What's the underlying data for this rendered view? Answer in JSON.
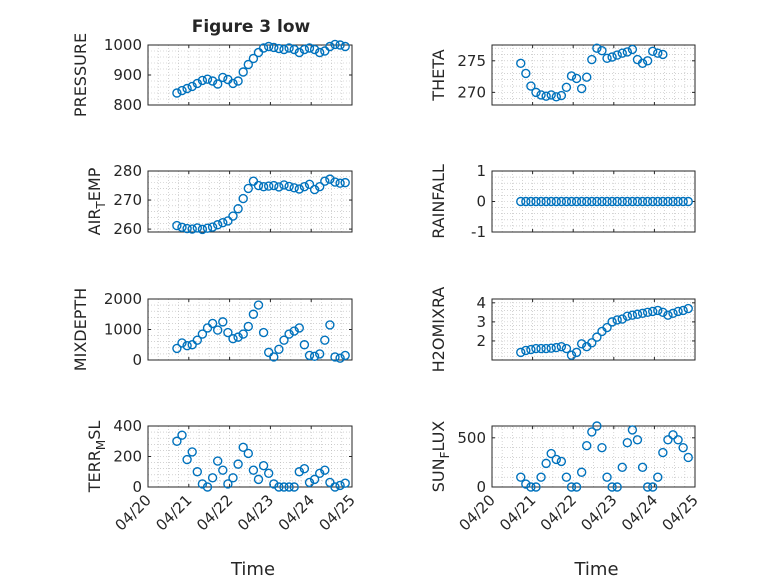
{
  "title": "Figure 3 low",
  "chart_data": [
    {
      "type": "scatter",
      "ylabel": "PRESSURE",
      "ylim": [
        800,
        1000
      ],
      "yticks": [
        800,
        900,
        1000
      ],
      "color": "#0072bd",
      "points": [
        [
          "2020-04-20 17:00",
          840
        ],
        [
          "2020-04-20 20:00",
          848
        ],
        [
          "2020-04-20 23:00",
          855
        ],
        [
          "2020-04-21 02:00",
          862
        ],
        [
          "2020-04-21 05:00",
          872
        ],
        [
          "2020-04-21 08:00",
          882
        ],
        [
          "2020-04-21 11:00",
          886
        ],
        [
          "2020-04-21 14:00",
          880
        ],
        [
          "2020-04-21 17:00",
          870
        ],
        [
          "2020-04-21 20:00",
          892
        ],
        [
          "2020-04-21 23:00",
          885
        ],
        [
          "2020-04-22 02:00",
          872
        ],
        [
          "2020-04-22 05:00",
          880
        ],
        [
          "2020-04-22 08:00",
          910
        ],
        [
          "2020-04-22 11:00",
          935
        ],
        [
          "2020-04-22 14:00",
          955
        ],
        [
          "2020-04-22 17:00",
          975
        ],
        [
          "2020-04-22 20:00",
          990
        ],
        [
          "2020-04-22 23:00",
          995
        ],
        [
          "2020-04-23 02:00",
          992
        ],
        [
          "2020-04-23 05:00",
          988
        ],
        [
          "2020-04-23 08:00",
          985
        ],
        [
          "2020-04-23 11:00",
          990
        ],
        [
          "2020-04-23 14:00",
          985
        ],
        [
          "2020-04-23 17:00",
          975
        ],
        [
          "2020-04-23 20:00",
          985
        ],
        [
          "2020-04-23 23:00",
          990
        ],
        [
          "2020-04-24 02:00",
          985
        ],
        [
          "2020-04-24 05:00",
          975
        ],
        [
          "2020-04-24 08:00",
          980
        ],
        [
          "2020-04-24 11:00",
          995
        ],
        [
          "2020-04-24 14:00",
          1002
        ],
        [
          "2020-04-24 17:00",
          1000
        ],
        [
          "2020-04-24 20:00",
          995
        ]
      ]
    },
    {
      "type": "scatter",
      "ylabel": "THETA",
      "ylim": [
        268,
        277.5
      ],
      "yticks": [
        270,
        275
      ],
      "color": "#0072bd",
      "points": [
        [
          "2020-04-20 17:00",
          274.6
        ],
        [
          "2020-04-20 20:00",
          273.0
        ],
        [
          "2020-04-20 23:00",
          271.0
        ],
        [
          "2020-04-21 02:00",
          270.0
        ],
        [
          "2020-04-21 05:00",
          269.6
        ],
        [
          "2020-04-21 08:00",
          269.4
        ],
        [
          "2020-04-21 11:00",
          269.6
        ],
        [
          "2020-04-21 14:00",
          269.3
        ],
        [
          "2020-04-21 17:00",
          269.5
        ],
        [
          "2020-04-21 20:00",
          270.8
        ],
        [
          "2020-04-21 23:00",
          272.6
        ],
        [
          "2020-04-22 02:00",
          272.2
        ],
        [
          "2020-04-22 05:00",
          270.6
        ],
        [
          "2020-04-22 08:00",
          272.4
        ],
        [
          "2020-04-22 11:00",
          275.2
        ],
        [
          "2020-04-22 14:00",
          277.0
        ],
        [
          "2020-04-22 17:00",
          276.6
        ],
        [
          "2020-04-22 20:00",
          275.4
        ],
        [
          "2020-04-22 23:00",
          275.6
        ],
        [
          "2020-04-23 02:00",
          275.9
        ],
        [
          "2020-04-23 05:00",
          276.2
        ],
        [
          "2020-04-23 08:00",
          276.4
        ],
        [
          "2020-04-23 11:00",
          276.8
        ],
        [
          "2020-04-23 14:00",
          275.2
        ],
        [
          "2020-04-23 17:00",
          274.6
        ],
        [
          "2020-04-23 20:00",
          275.0
        ],
        [
          "2020-04-23 23:00",
          276.5
        ],
        [
          "2020-04-24 02:00",
          276.2
        ],
        [
          "2020-04-24 05:00",
          276.0
        ]
      ]
    },
    {
      "type": "scatter",
      "ylabel": "AIR_TEMP",
      "ylim": [
        259,
        280
      ],
      "yticks": [
        260,
        270,
        280
      ],
      "color": "#0072bd",
      "points": [
        [
          "2020-04-20 17:00",
          261.2
        ],
        [
          "2020-04-20 20:00",
          260.6
        ],
        [
          "2020-04-20 23:00",
          260.2
        ],
        [
          "2020-04-21 02:00",
          260.0
        ],
        [
          "2020-04-21 05:00",
          260.4
        ],
        [
          "2020-04-21 08:00",
          259.9
        ],
        [
          "2020-04-21 11:00",
          260.3
        ],
        [
          "2020-04-21 14:00",
          260.7
        ],
        [
          "2020-04-21 17:00",
          261.5
        ],
        [
          "2020-04-21 20:00",
          262.2
        ],
        [
          "2020-04-21 23:00",
          262.8
        ],
        [
          "2020-04-22 02:00",
          264.5
        ],
        [
          "2020-04-22 05:00",
          267.0
        ],
        [
          "2020-04-22 08:00",
          270.5
        ],
        [
          "2020-04-22 11:00",
          274.0
        ],
        [
          "2020-04-22 14:00",
          276.5
        ],
        [
          "2020-04-22 17:00",
          275.0
        ],
        [
          "2020-04-22 20:00",
          274.6
        ],
        [
          "2020-04-22 23:00",
          274.8
        ],
        [
          "2020-04-23 02:00",
          275.0
        ],
        [
          "2020-04-23 05:00",
          274.5
        ],
        [
          "2020-04-23 08:00",
          275.2
        ],
        [
          "2020-04-23 11:00",
          274.7
        ],
        [
          "2020-04-23 14:00",
          274.2
        ],
        [
          "2020-04-23 17:00",
          273.8
        ],
        [
          "2020-04-23 20:00",
          274.6
        ],
        [
          "2020-04-23 23:00",
          275.4
        ],
        [
          "2020-04-24 02:00",
          273.6
        ],
        [
          "2020-04-24 05:00",
          274.6
        ],
        [
          "2020-04-24 08:00",
          276.5
        ],
        [
          "2020-04-24 11:00",
          277.2
        ],
        [
          "2020-04-24 14:00",
          276.2
        ],
        [
          "2020-04-24 17:00",
          275.8
        ],
        [
          "2020-04-24 20:00",
          276.0
        ]
      ]
    },
    {
      "type": "scatter",
      "ylabel": "RAINFALL",
      "ylim": [
        -1,
        1
      ],
      "yticks": [
        -1,
        0,
        1
      ],
      "color": "#0072bd",
      "points": [
        [
          "2020-04-20 17:00",
          0
        ],
        [
          "2020-04-20 20:00",
          0
        ],
        [
          "2020-04-20 23:00",
          0
        ],
        [
          "2020-04-21 02:00",
          0
        ],
        [
          "2020-04-21 05:00",
          0
        ],
        [
          "2020-04-21 08:00",
          0
        ],
        [
          "2020-04-21 11:00",
          0
        ],
        [
          "2020-04-21 14:00",
          0
        ],
        [
          "2020-04-21 17:00",
          0
        ],
        [
          "2020-04-21 20:00",
          0
        ],
        [
          "2020-04-21 23:00",
          0
        ],
        [
          "2020-04-22 02:00",
          0
        ],
        [
          "2020-04-22 05:00",
          0
        ],
        [
          "2020-04-22 08:00",
          0
        ],
        [
          "2020-04-22 11:00",
          0
        ],
        [
          "2020-04-22 14:00",
          0
        ],
        [
          "2020-04-22 17:00",
          0
        ],
        [
          "2020-04-22 20:00",
          0
        ],
        [
          "2020-04-22 23:00",
          0
        ],
        [
          "2020-04-23 02:00",
          0
        ],
        [
          "2020-04-23 05:00",
          0
        ],
        [
          "2020-04-23 08:00",
          0
        ],
        [
          "2020-04-23 11:00",
          0
        ],
        [
          "2020-04-23 14:00",
          0
        ],
        [
          "2020-04-23 17:00",
          0
        ],
        [
          "2020-04-23 20:00",
          0
        ],
        [
          "2020-04-23 23:00",
          0
        ],
        [
          "2020-04-24 02:00",
          0
        ],
        [
          "2020-04-24 05:00",
          0
        ],
        [
          "2020-04-24 08:00",
          0
        ],
        [
          "2020-04-24 11:00",
          0
        ],
        [
          "2020-04-24 14:00",
          0
        ],
        [
          "2020-04-24 17:00",
          0
        ],
        [
          "2020-04-24 20:00",
          0
        ]
      ]
    },
    {
      "type": "scatter",
      "ylabel": "MIXDEPTH",
      "ylim": [
        0,
        2000
      ],
      "yticks": [
        0,
        1000,
        2000
      ],
      "color": "#0072bd",
      "points": [
        [
          "2020-04-20 17:00",
          380
        ],
        [
          "2020-04-20 20:00",
          560
        ],
        [
          "2020-04-20 23:00",
          470
        ],
        [
          "2020-04-21 02:00",
          500
        ],
        [
          "2020-04-21 05:00",
          650
        ],
        [
          "2020-04-21 08:00",
          850
        ],
        [
          "2020-04-21 11:00",
          1050
        ],
        [
          "2020-04-21 14:00",
          1200
        ],
        [
          "2020-04-21 17:00",
          980
        ],
        [
          "2020-04-21 20:00",
          1250
        ],
        [
          "2020-04-21 23:00",
          900
        ],
        [
          "2020-04-22 02:00",
          700
        ],
        [
          "2020-04-22 05:00",
          750
        ],
        [
          "2020-04-22 08:00",
          850
        ],
        [
          "2020-04-22 11:00",
          1100
        ],
        [
          "2020-04-22 14:00",
          1500
        ],
        [
          "2020-04-22 17:00",
          1800
        ],
        [
          "2020-04-22 20:00",
          900
        ],
        [
          "2020-04-22 23:00",
          250
        ],
        [
          "2020-04-23 02:00",
          100
        ],
        [
          "2020-04-23 05:00",
          350
        ],
        [
          "2020-04-23 08:00",
          650
        ],
        [
          "2020-04-23 11:00",
          850
        ],
        [
          "2020-04-23 14:00",
          950
        ],
        [
          "2020-04-23 17:00",
          1050
        ],
        [
          "2020-04-23 20:00",
          500
        ],
        [
          "2020-04-23 23:00",
          150
        ],
        [
          "2020-04-24 02:00",
          120
        ],
        [
          "2020-04-24 05:00",
          200
        ],
        [
          "2020-04-24 08:00",
          650
        ],
        [
          "2020-04-24 11:00",
          1150
        ],
        [
          "2020-04-24 14:00",
          100
        ],
        [
          "2020-04-24 17:00",
          60
        ],
        [
          "2020-04-24 20:00",
          150
        ]
      ]
    },
    {
      "type": "scatter",
      "ylabel": "H2OMIXRA",
      "ylim": [
        1,
        4.2
      ],
      "yticks": [
        2,
        3,
        4
      ],
      "color": "#0072bd",
      "points": [
        [
          "2020-04-20 17:00",
          1.4
        ],
        [
          "2020-04-20 20:00",
          1.5
        ],
        [
          "2020-04-20 23:00",
          1.55
        ],
        [
          "2020-04-21 02:00",
          1.6
        ],
        [
          "2020-04-21 05:00",
          1.6
        ],
        [
          "2020-04-21 08:00",
          1.6
        ],
        [
          "2020-04-21 11:00",
          1.62
        ],
        [
          "2020-04-21 14:00",
          1.65
        ],
        [
          "2020-04-21 17:00",
          1.7
        ],
        [
          "2020-04-21 20:00",
          1.6
        ],
        [
          "2020-04-21 23:00",
          1.25
        ],
        [
          "2020-04-22 02:00",
          1.4
        ],
        [
          "2020-04-22 05:00",
          1.85
        ],
        [
          "2020-04-22 08:00",
          1.7
        ],
        [
          "2020-04-22 11:00",
          1.9
        ],
        [
          "2020-04-22 14:00",
          2.2
        ],
        [
          "2020-04-22 17:00",
          2.5
        ],
        [
          "2020-04-22 20:00",
          2.7
        ],
        [
          "2020-04-22 23:00",
          3.0
        ],
        [
          "2020-04-23 02:00",
          3.1
        ],
        [
          "2020-04-23 05:00",
          3.15
        ],
        [
          "2020-04-23 08:00",
          3.3
        ],
        [
          "2020-04-23 11:00",
          3.35
        ],
        [
          "2020-04-23 14:00",
          3.4
        ],
        [
          "2020-04-23 17:00",
          3.45
        ],
        [
          "2020-04-23 20:00",
          3.5
        ],
        [
          "2020-04-23 23:00",
          3.55
        ],
        [
          "2020-04-24 02:00",
          3.6
        ],
        [
          "2020-04-24 05:00",
          3.5
        ],
        [
          "2020-04-24 08:00",
          3.35
        ],
        [
          "2020-04-24 11:00",
          3.45
        ],
        [
          "2020-04-24 14:00",
          3.55
        ],
        [
          "2020-04-24 17:00",
          3.6
        ],
        [
          "2020-04-24 20:00",
          3.7
        ]
      ]
    },
    {
      "type": "scatter",
      "ylabel": "TERR_MSL",
      "ylim": [
        0,
        400
      ],
      "yticks": [
        0,
        200,
        400
      ],
      "color": "#0072bd",
      "points": [
        [
          "2020-04-20 17:00",
          300
        ],
        [
          "2020-04-20 20:00",
          340
        ],
        [
          "2020-04-20 23:00",
          180
        ],
        [
          "2020-04-21 02:00",
          230
        ],
        [
          "2020-04-21 05:00",
          100
        ],
        [
          "2020-04-21 08:00",
          20
        ],
        [
          "2020-04-21 11:00",
          0
        ],
        [
          "2020-04-21 14:00",
          60
        ],
        [
          "2020-04-21 17:00",
          170
        ],
        [
          "2020-04-21 20:00",
          110
        ],
        [
          "2020-04-21 23:00",
          20
        ],
        [
          "2020-04-22 02:00",
          60
        ],
        [
          "2020-04-22 05:00",
          150
        ],
        [
          "2020-04-22 08:00",
          260
        ],
        [
          "2020-04-22 11:00",
          220
        ],
        [
          "2020-04-22 14:00",
          110
        ],
        [
          "2020-04-22 17:00",
          50
        ],
        [
          "2020-04-22 20:00",
          140
        ],
        [
          "2020-04-22 23:00",
          90
        ],
        [
          "2020-04-23 02:00",
          20
        ],
        [
          "2020-04-23 05:00",
          0
        ],
        [
          "2020-04-23 08:00",
          0
        ],
        [
          "2020-04-23 11:00",
          0
        ],
        [
          "2020-04-23 14:00",
          0
        ],
        [
          "2020-04-23 17:00",
          100
        ],
        [
          "2020-04-23 20:00",
          120
        ],
        [
          "2020-04-23 23:00",
          30
        ],
        [
          "2020-04-24 02:00",
          50
        ],
        [
          "2020-04-24 05:00",
          90
        ],
        [
          "2020-04-24 08:00",
          110
        ],
        [
          "2020-04-24 11:00",
          30
        ],
        [
          "2020-04-24 14:00",
          0
        ],
        [
          "2020-04-24 17:00",
          10
        ],
        [
          "2020-04-24 20:00",
          25
        ]
      ]
    },
    {
      "type": "scatter",
      "ylabel": "SUN_FLUX",
      "ylim": [
        0,
        620
      ],
      "yticks": [
        0,
        500
      ],
      "color": "#0072bd",
      "points": [
        [
          "2020-04-20 17:00",
          100
        ],
        [
          "2020-04-20 20:00",
          30
        ],
        [
          "2020-04-20 23:00",
          0
        ],
        [
          "2020-04-21 02:00",
          0
        ],
        [
          "2020-04-21 05:00",
          100
        ],
        [
          "2020-04-21 08:00",
          240
        ],
        [
          "2020-04-21 11:00",
          340
        ],
        [
          "2020-04-21 14:00",
          280
        ],
        [
          "2020-04-21 17:00",
          260
        ],
        [
          "2020-04-21 20:00",
          100
        ],
        [
          "2020-04-21 23:00",
          0
        ],
        [
          "2020-04-22 02:00",
          0
        ],
        [
          "2020-04-22 05:00",
          150
        ],
        [
          "2020-04-22 08:00",
          420
        ],
        [
          "2020-04-22 11:00",
          560
        ],
        [
          "2020-04-22 14:00",
          620
        ],
        [
          "2020-04-22 17:00",
          400
        ],
        [
          "2020-04-22 20:00",
          100
        ],
        [
          "2020-04-22 23:00",
          0
        ],
        [
          "2020-04-23 02:00",
          0
        ],
        [
          "2020-04-23 05:00",
          200
        ],
        [
          "2020-04-23 08:00",
          450
        ],
        [
          "2020-04-23 11:00",
          580
        ],
        [
          "2020-04-23 14:00",
          480
        ],
        [
          "2020-04-23 17:00",
          200
        ],
        [
          "2020-04-23 20:00",
          0
        ],
        [
          "2020-04-23 23:00",
          0
        ],
        [
          "2020-04-24 02:00",
          100
        ],
        [
          "2020-04-24 05:00",
          350
        ],
        [
          "2020-04-24 08:00",
          480
        ],
        [
          "2020-04-24 11:00",
          530
        ],
        [
          "2020-04-24 14:00",
          480
        ],
        [
          "2020-04-24 17:00",
          400
        ],
        [
          "2020-04-24 20:00",
          300
        ]
      ]
    }
  ],
  "x_axis": {
    "xlabel": "Time",
    "xlim": [
      "2020-04-20",
      "2020-04-25"
    ],
    "ticks": [
      "2020-04-20",
      "2020-04-21",
      "2020-04-22",
      "2020-04-23",
      "2020-04-24",
      "2020-04-25"
    ],
    "tick_labels": [
      "04/20",
      "04/21",
      "04/22",
      "04/23",
      "04/24",
      "04/25"
    ]
  }
}
